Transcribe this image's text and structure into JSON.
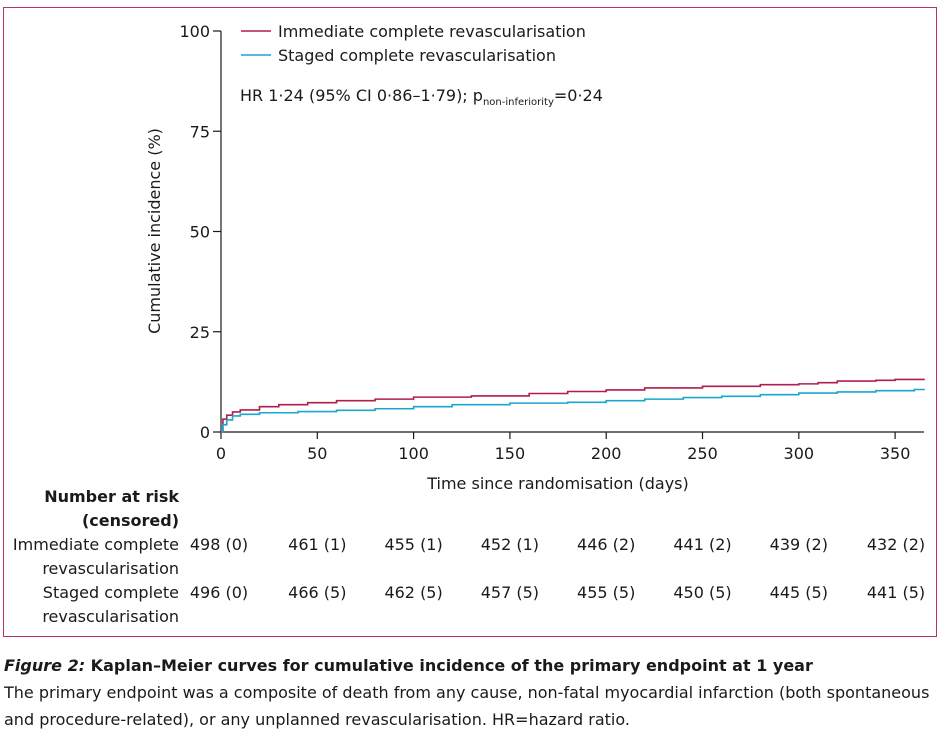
{
  "chart_data": {
    "type": "line",
    "title": "",
    "xlabel": "Time since randomisation (days)",
    "ylabel": "Cumulative incidence (%)",
    "xlim": [
      0,
      365
    ],
    "ylim": [
      0,
      100
    ],
    "xticks": [
      0,
      50,
      100,
      150,
      200,
      250,
      300,
      350
    ],
    "yticks": [
      0,
      25,
      50,
      75,
      100
    ],
    "grid": false,
    "legend_position": "top-left",
    "series": [
      {
        "name": "Immediate complete revascularisation",
        "color": "#b01e4f",
        "x": [
          0,
          1,
          3,
          6,
          10,
          20,
          30,
          45,
          60,
          80,
          100,
          130,
          160,
          180,
          200,
          220,
          250,
          280,
          300,
          310,
          320,
          340,
          350,
          365
        ],
        "y": [
          0,
          3.2,
          4.2,
          5.0,
          5.5,
          6.3,
          6.8,
          7.3,
          7.8,
          8.2,
          8.7,
          9.0,
          9.6,
          10.1,
          10.5,
          11.0,
          11.4,
          11.8,
          12.0,
          12.3,
          12.7,
          12.9,
          13.1,
          13.3
        ]
      },
      {
        "name": "Staged complete revascularisation",
        "color": "#1aa6cf",
        "x": [
          0,
          1,
          3,
          6,
          10,
          20,
          40,
          60,
          80,
          100,
          120,
          150,
          180,
          200,
          220,
          240,
          260,
          280,
          300,
          320,
          340,
          360,
          365
        ],
        "y": [
          0,
          1.8,
          3.0,
          4.0,
          4.4,
          4.8,
          5.1,
          5.4,
          5.8,
          6.3,
          6.8,
          7.2,
          7.4,
          7.8,
          8.2,
          8.6,
          8.9,
          9.3,
          9.7,
          10.0,
          10.3,
          10.6,
          10.8
        ]
      }
    ],
    "annotation": {
      "prefix": "HR 1·24 (95% CI 0·86–1·79); p",
      "subscript": "non-inferiority",
      "suffix": "=0·24"
    }
  },
  "risk_table": {
    "header_line1": "Number at risk",
    "header_line2": "(censored)",
    "rows": [
      {
        "label_line1": "Immediate complete",
        "label_line2": "revascularisation",
        "values": [
          "498 (0)",
          "461 (1)",
          "455 (1)",
          "452 (1)",
          "446 (2)",
          "441 (2)",
          "439 (2)",
          "432 (2)"
        ]
      },
      {
        "label_line1": "Staged complete",
        "label_line2": "revascularisation",
        "values": [
          "496 (0)",
          "466 (5)",
          "462 (5)",
          "457 (5)",
          "455 (5)",
          "450 (5)",
          "445 (5)",
          "441 (5)"
        ]
      }
    ]
  },
  "caption": {
    "figure_label": "Figure 2:",
    "title": " Kaplan–Meier curves for cumulative incidence of the primary endpoint at 1 year",
    "body": "The primary endpoint was a composite of death from any cause, non-fatal myocardial infarction (both spontaneous and procedure-related), or any unplanned revascularisation. HR=hazard ratio."
  }
}
